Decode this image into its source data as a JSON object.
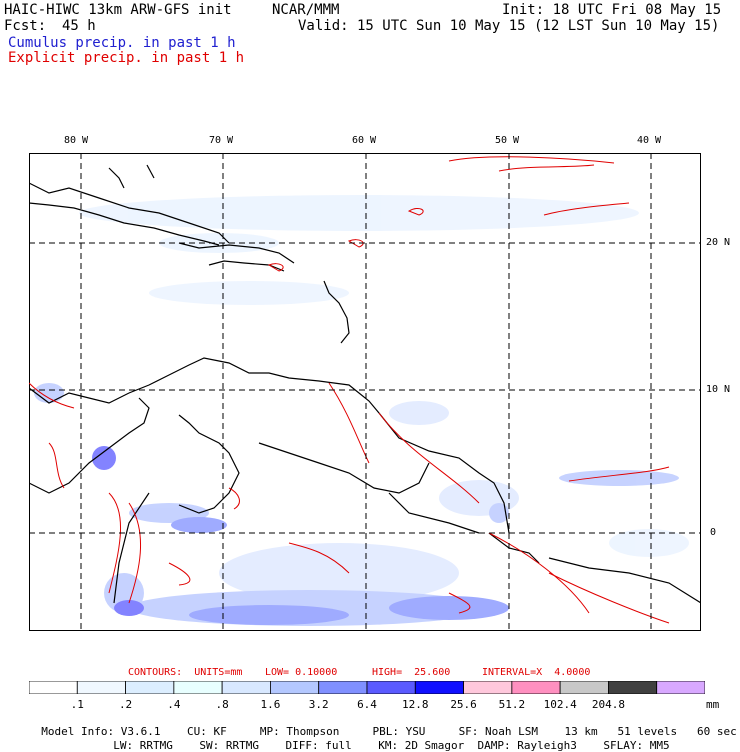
{
  "header": {
    "model_title": "HAIC-HIWC 13km ARW-GFS init",
    "org": "NCAR/MMM",
    "init": "Init: 18 UTC Fri 08 May 15",
    "fcst_label": "Fcst:",
    "fcst_value": "45 h",
    "valid": "Valid: 15 UTC Sun 10 May 15 (12 LST Sun 10 May 15)",
    "cumulus": "Cumulus precip. in past 1 h",
    "explicit": "Explicit precip. in past 1 h"
  },
  "colors": {
    "cumulus_text": "#2020d0",
    "explicit_text": "#e00000",
    "coast": "#000000",
    "grid": "#000000"
  },
  "map": {
    "lon_labels": [
      "80 W",
      "70 W",
      "60 W",
      "50 W",
      "40 W"
    ],
    "lat_labels": [
      "20 N",
      "10 N",
      "0"
    ]
  },
  "contours": {
    "units_label": "CONTOURS:  UNITS=mm",
    "low": "LOW= 0.10000",
    "high": "HIGH=  25.600",
    "interval": "INTERVAL=X  4.0000"
  },
  "colorbar": {
    "unit": "mm",
    "ticks": [
      ".1",
      ".2",
      ".4",
      ".8",
      "1.6",
      "3.2",
      "6.4",
      "12.8",
      "25.6",
      "51.2",
      "102.4",
      "204.8"
    ],
    "bin_colors": [
      "#ffffff",
      "#f0f8ff",
      "#dceeff",
      "#e8ffff",
      "#d8e8ff",
      "#b4c8ff",
      "#8090ff",
      "#5a5aff",
      "#1010ff",
      "#ffc8dc",
      "#ff90c0",
      "#c8c8c8",
      "#404040",
      "#d8a8ff"
    ]
  },
  "model_info": {
    "line1": [
      "Model Info: V3.6.1",
      "CU: KF",
      "MP: Thompson",
      "PBL: YSU",
      "SF: Noah LSM",
      "13 km",
      "51 levels",
      "60 sec"
    ],
    "line2": [
      "LW: RRTMG",
      "SW: RRTMG",
      "DIFF: full",
      "KM: 2D Smagor",
      "DAMP: Rayleigh3",
      "SFLAY: MM5"
    ]
  }
}
